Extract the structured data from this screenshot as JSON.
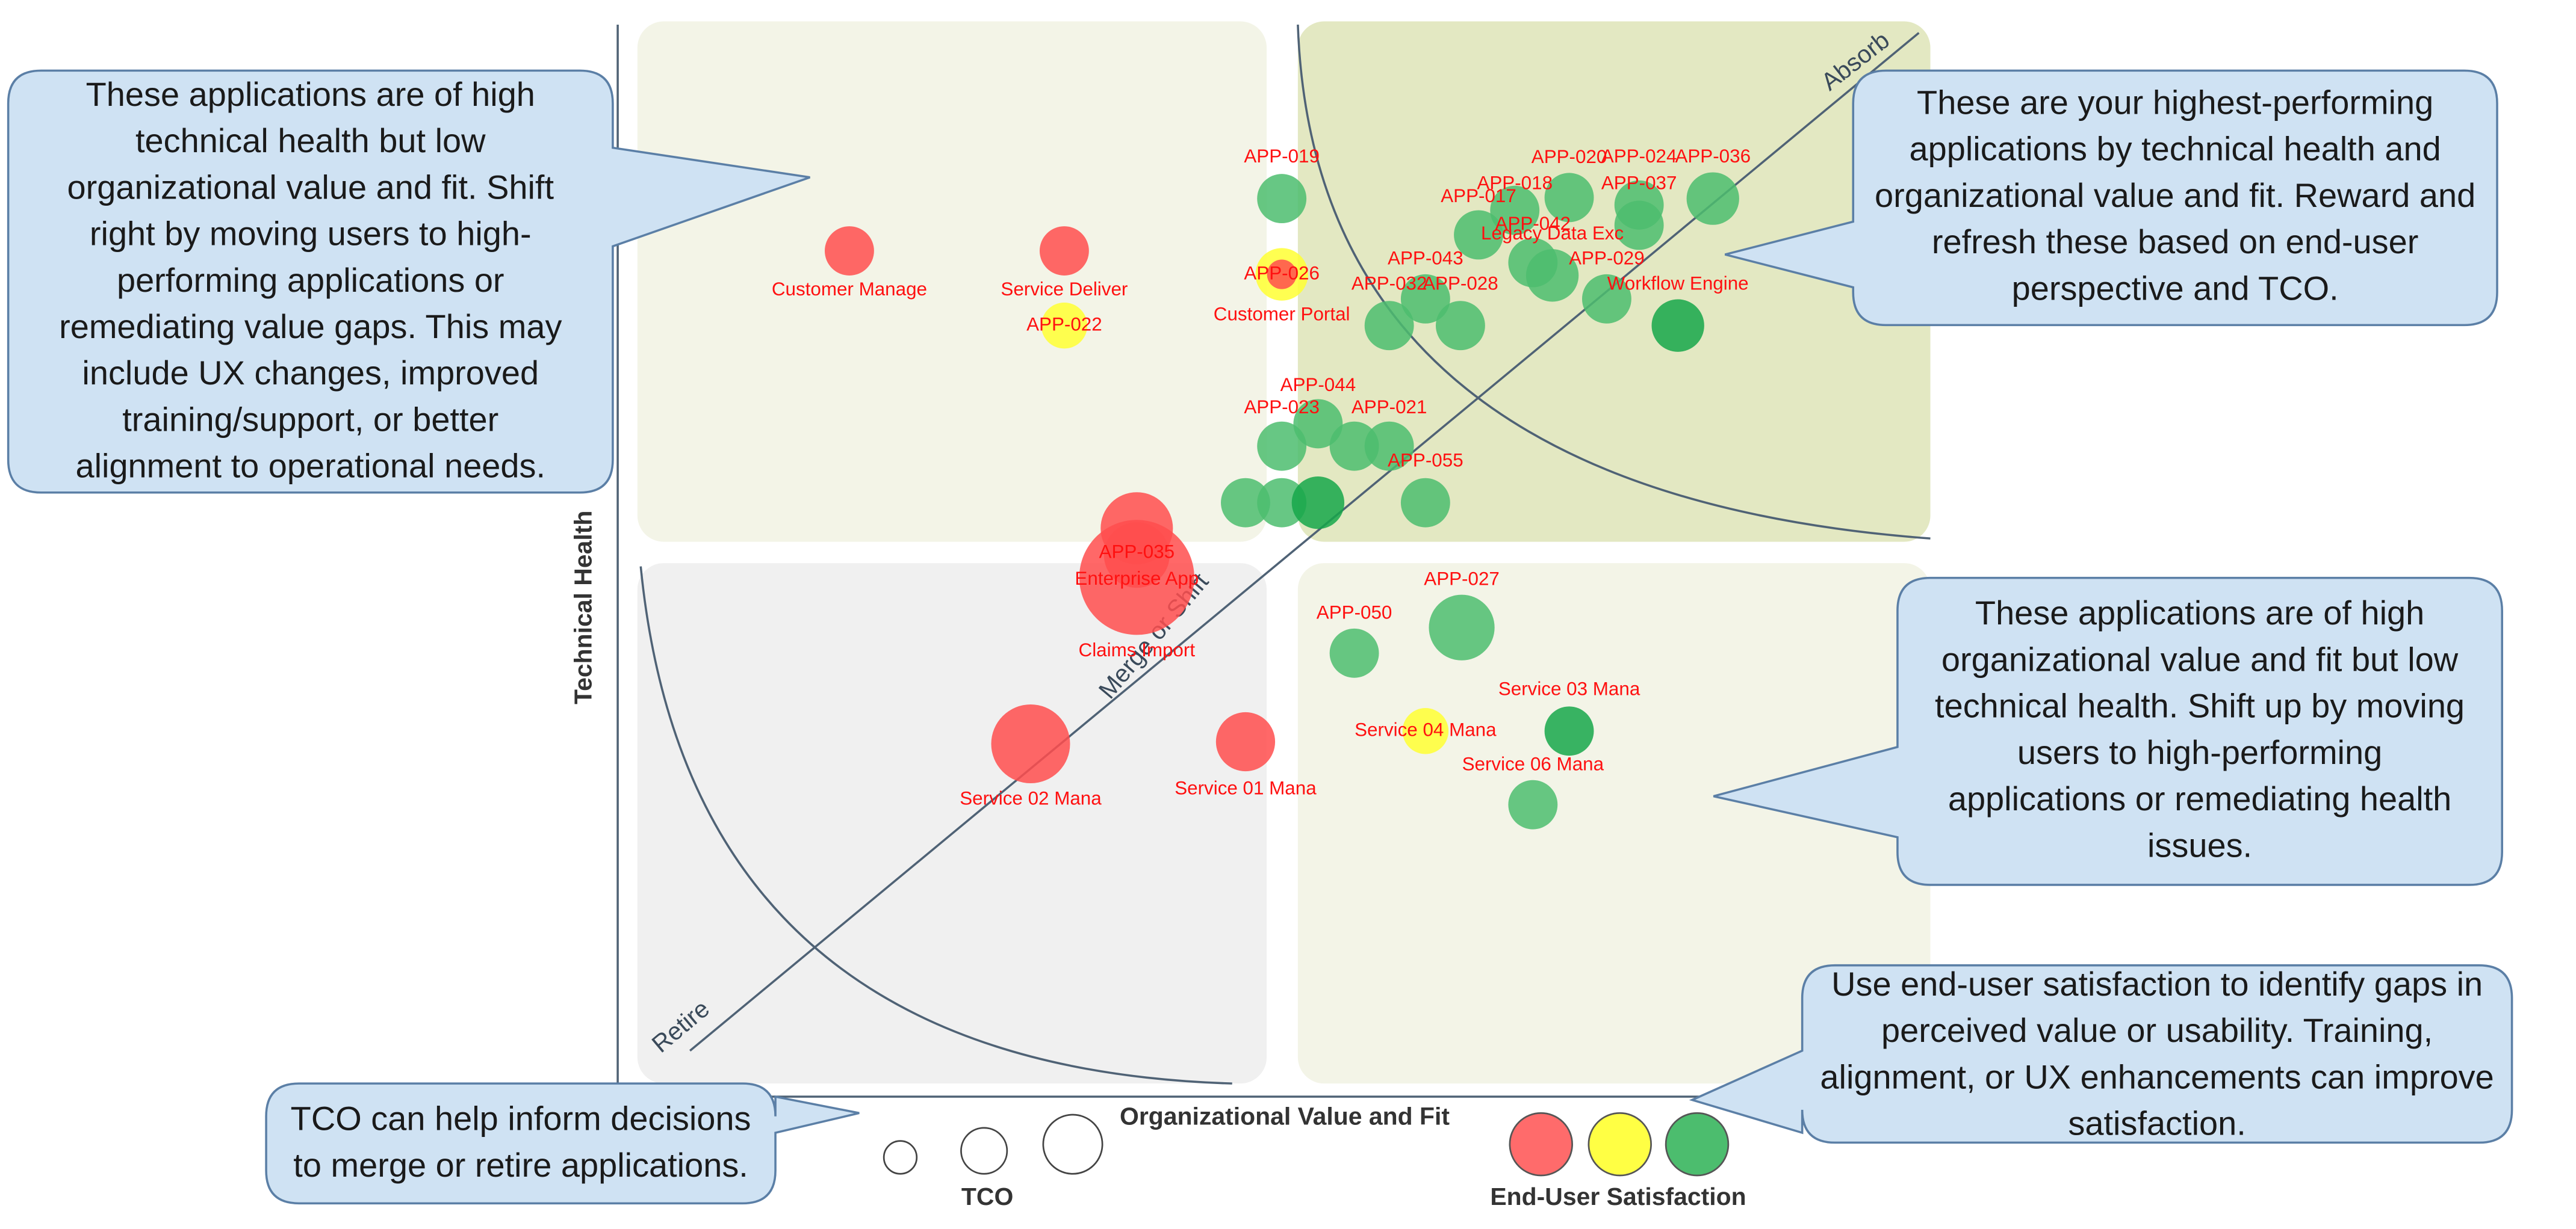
{
  "chart_data": {
    "type": "bubble",
    "x_label": "Organizational Value and Fit",
    "y_label": "Technical Health",
    "xlim": [
      0,
      100
    ],
    "ylim": [
      0,
      100
    ],
    "quadrant_labels": [
      "Absorb",
      "Merge or Shift",
      "Retire"
    ],
    "labels": [
      "Customer Manage",
      "Service Deliver",
      "APP-022",
      "APP-019",
      "Customer Portal",
      "APP-026",
      "APP-017",
      "APP-018",
      "APP-020",
      "APP-024",
      "APP-036",
      "APP-037",
      "APP-042",
      "Legacy Data Exc",
      "APP-029",
      "Workflow Engine",
      "APP-043",
      "APP-032",
      "APP-028",
      "APP-044",
      "APP-023",
      "APP-021",
      null,
      "APP-055",
      null,
      null,
      null,
      "APP-035",
      "Enterprise App",
      "Claims Import",
      "Service 02 Mana",
      "Service 01 Mana",
      "APP-027",
      "APP-050",
      "Service 03 Mana",
      "Service 04 Mana",
      "Service 06 Mana"
    ],
    "x": [
      16.5,
      33.1,
      33.1,
      49.9,
      49.9,
      49.9,
      65.1,
      67.9,
      72.1,
      77.5,
      83.2,
      77.5,
      69.3,
      70.8,
      75.0,
      80.5,
      61.0,
      58.2,
      63.7,
      52.7,
      49.9,
      58.2,
      55.5,
      61.0,
      47.1,
      49.9,
      52.7,
      38.7,
      38.7,
      38.7,
      30.5,
      47.1,
      63.8,
      55.5,
      72.1,
      61.0,
      69.3
    ],
    "y": [
      78.8,
      78.8,
      71.8,
      83.7,
      76.6,
      76.6,
      80.3,
      82.6,
      83.8,
      83.1,
      83.7,
      81.2,
      77.7,
      76.5,
      74.3,
      71.8,
      74.3,
      71.8,
      71.8,
      62.6,
      60.5,
      60.5,
      60.5,
      55.2,
      55.2,
      55.2,
      55.2,
      52.8,
      50.3,
      48.2,
      32.6,
      32.8,
      43.5,
      41.1,
      33.8,
      33.8,
      26.9
    ],
    "size": [
      15,
      15,
      14,
      15,
      16,
      9,
      15,
      15,
      15,
      15,
      16,
      15,
      15,
      16,
      15,
      16,
      15,
      15,
      15,
      15,
      15,
      15,
      15,
      15,
      15,
      15,
      16,
      22,
      20,
      35,
      24,
      18,
      20,
      15,
      15,
      14,
      15
    ],
    "colors": [
      "#ff4d4d",
      "#ff4d4d",
      "#ffff33",
      "#4cbd6e",
      "#ffff33",
      "#ff4d4d",
      "#4cbd6e",
      "#4cbd6e",
      "#4cbd6e",
      "#4cbd6e",
      "#4cbd6e",
      "#4cbd6e",
      "#4cbd6e",
      "#4cbd6e",
      "#4cbd6e",
      "#16a74a",
      "#4cbd6e",
      "#4cbd6e",
      "#4cbd6e",
      "#4cbd6e",
      "#4cbd6e",
      "#4cbd6e",
      "#4cbd6e",
      "#4cbd6e",
      "#4cbd6e",
      "#4cbd6e",
      "#16a74a",
      "#ff4d4d",
      "#ff4d4d",
      "#ff4d4d",
      "#ff4d4d",
      "#ff4d4d",
      "#4cbd6e",
      "#4cbd6e",
      "#16a74a",
      "#ffff33",
      "#4cbd6e"
    ],
    "legend": {
      "size_title": "TCO",
      "color_title": "End-User Satisfaction"
    },
    "callouts": [
      [
        "These applications are of high",
        "technical health but low",
        "organizational value and fit. Shift",
        "right by moving users to high-",
        "performing applications or",
        "remediating value gaps. This may",
        "include UX changes, improved",
        "training/support, or better",
        "alignment to operational needs."
      ],
      [
        "These are your highest-performing",
        "applications by technical health and",
        "organizational value and fit. Reward and",
        "refresh these based on end-user",
        "perspective and TCO."
      ],
      [
        "These applications are of high",
        "organizational value and fit but low",
        "technical health. Shift up by moving",
        "users to high-performing",
        "applications or remediating health",
        "issues."
      ],
      [
        "Use end-user satisfaction to identify gaps in",
        "perceived value or usability. Training,",
        "alignment, or UX enhancements can improve",
        "satisfaction."
      ],
      [
        "TCO can help inform decisions",
        "to merge or retire applications."
      ]
    ]
  }
}
